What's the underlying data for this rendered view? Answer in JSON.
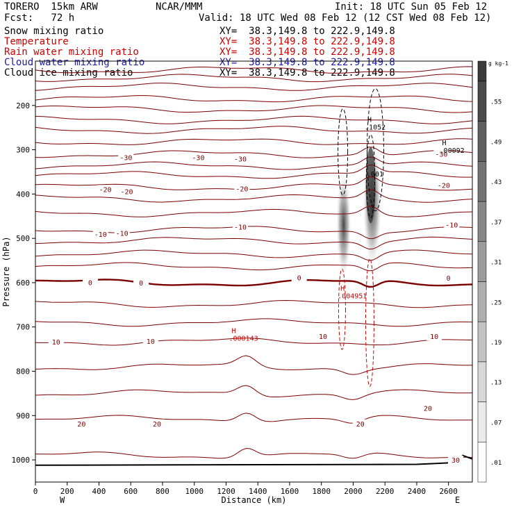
{
  "header": {
    "model": "TORERO  15km ARW",
    "org": "NCAR/MMM",
    "init": "Init: 18 UTC Sun 05 Feb 12",
    "fcst": "Fcst:   72 h",
    "valid": "Valid: 18 UTC Wed 08 Feb 12 (12 CST Wed 08 Feb 12)"
  },
  "fields": [
    {
      "label": "Snow mixing ratio",
      "xy": "XY=  38.3,149.8 to 222.9,149.8",
      "color": "#000000"
    },
    {
      "label": "Temperature",
      "xy": "XY=  38.3,149.8 to 222.9,149.8",
      "color": "#cc0000"
    },
    {
      "label": "Rain water mixing ratio",
      "xy": "XY=  38.3,149.8 to 222.9,149.8",
      "color": "#cc0000"
    },
    {
      "label": "Cloud water mixing ratio",
      "xy": "XY=  38.3,149.8 to 222.9,149.8",
      "color": "#1a1aa6"
    },
    {
      "label": "Cloud ice mixing ratio",
      "xy": "XY=  38.3,149.8 to 222.9,149.8",
      "color": "#000000"
    }
  ],
  "chart_data": {
    "type": "cross-section",
    "xlabel": "Distance (km)",
    "ylabel": "Pressure (hPa)",
    "xlim": [
      0,
      2750
    ],
    "ylim": [
      1050,
      100
    ],
    "x_ticks": [
      0,
      200,
      400,
      600,
      800,
      1000,
      1200,
      1400,
      1600,
      1800,
      2000,
      2200,
      2400,
      2600
    ],
    "y_ticks": [
      200,
      300,
      400,
      500,
      600,
      700,
      800,
      900,
      1000
    ],
    "x_left_label": "W",
    "x_right_label": "E",
    "colorbar": {
      "unit": "g kg-1",
      "ticks": [
        ".01",
        ".07",
        ".13",
        ".19",
        ".25",
        ".31",
        ".37",
        ".43",
        ".49",
        ".55"
      ]
    },
    "temperature_labels": [
      {
        "text": "-30",
        "x": 570,
        "p": 317
      },
      {
        "text": "-30",
        "x": 1025,
        "p": 317
      },
      {
        "text": "-30",
        "x": 1290,
        "p": 320
      },
      {
        "text": "-30",
        "x": 2555,
        "p": 309
      },
      {
        "text": "-20",
        "x": 440,
        "p": 389
      },
      {
        "text": "-20",
        "x": 575,
        "p": 394
      },
      {
        "text": "-20",
        "x": 1300,
        "p": 388
      },
      {
        "text": "-20",
        "x": 2570,
        "p": 380
      },
      {
        "text": "-10",
        "x": 410,
        "p": 490
      },
      {
        "text": "-10",
        "x": 545,
        "p": 488
      },
      {
        "text": "-10",
        "x": 1290,
        "p": 474
      },
      {
        "text": "-10",
        "x": 2620,
        "p": 469
      },
      {
        "text": "0",
        "x": 345,
        "p": 599
      },
      {
        "text": "0",
        "x": 665,
        "p": 600
      },
      {
        "text": "0",
        "x": 1660,
        "p": 588
      },
      {
        "text": "0",
        "x": 2600,
        "p": 589
      },
      {
        "text": "10",
        "x": 130,
        "p": 733
      },
      {
        "text": "10",
        "x": 725,
        "p": 732
      },
      {
        "text": "10",
        "x": 1810,
        "p": 721
      },
      {
        "text": "10",
        "x": 2510,
        "p": 721
      },
      {
        "text": "20",
        "x": 290,
        "p": 918
      },
      {
        "text": "20",
        "x": 765,
        "p": 918
      },
      {
        "text": "20",
        "x": 2045,
        "p": 918
      },
      {
        "text": "20",
        "x": 2470,
        "p": 883
      },
      {
        "text": "30",
        "x": 2645,
        "p": 1000
      }
    ],
    "annotations": [
      {
        "text": "H",
        "value": ".1052",
        "x": 2090,
        "p": 237,
        "color": "#000000"
      },
      {
        "text": "H",
        "value": ".00092",
        "x": 2560,
        "p": 290,
        "color": "#000000"
      },
      {
        "text": ".001",
        "value": "",
        "x": 2085,
        "p": 360,
        "color": "#000000"
      },
      {
        "text": "H",
        "value": ".004951",
        "x": 1920,
        "p": 618,
        "color": "#cc0000"
      },
      {
        "text": "H",
        "value": ".000143",
        "x": 1235,
        "p": 714,
        "color": "#cc0000"
      }
    ]
  }
}
